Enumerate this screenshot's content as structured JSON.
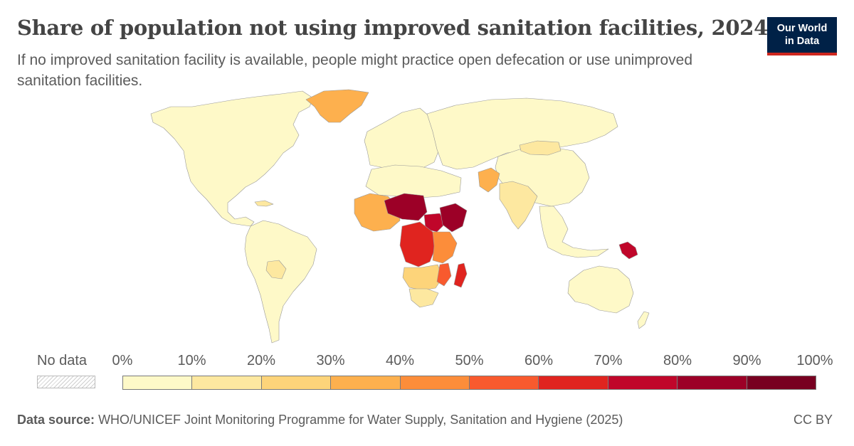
{
  "header": {
    "title": "Share of population not using improved sanitation facilities, 2024",
    "subtitle": "If no improved sanitation facility is available, people might practice open defecation or use unimproved sanitation facilities."
  },
  "logo": {
    "line1": "Our World",
    "line2": "in Data"
  },
  "legend": {
    "no_data_label": "No data",
    "ticks": [
      "0%",
      "10%",
      "20%",
      "30%",
      "40%",
      "50%",
      "60%",
      "70%",
      "80%",
      "90%",
      "100%"
    ],
    "bins": [
      {
        "range": "0-10%",
        "color": "#fef9c8"
      },
      {
        "range": "10-20%",
        "color": "#fde8a0"
      },
      {
        "range": "20-30%",
        "color": "#fdd47a"
      },
      {
        "range": "30-40%",
        "color": "#fdb04e"
      },
      {
        "range": "40-50%",
        "color": "#fc8d3a"
      },
      {
        "range": "50-60%",
        "color": "#f85a2e"
      },
      {
        "range": "60-70%",
        "color": "#e0241f"
      },
      {
        "range": "70-80%",
        "color": "#c0062a"
      },
      {
        "range": "80-90%",
        "color": "#9c0027"
      },
      {
        "range": "90-100%",
        "color": "#780021"
      }
    ]
  },
  "footer": {
    "source_label": "Data source:",
    "source_text": "WHO/UNICEF Joint Monitoring Programme for Water Supply, Sanitation and Hygiene (2025)",
    "license": "CC BY"
  },
  "map": {
    "regions": [
      {
        "name": "North America",
        "color": "#fef9c8"
      },
      {
        "name": "Greenland",
        "color": "#fdb04e"
      },
      {
        "name": "Caribbean",
        "color": "#fde8a0"
      },
      {
        "name": "South America",
        "color": "#fef9c8"
      },
      {
        "name": "Bolivia",
        "color": "#fde8a0"
      },
      {
        "name": "Europe",
        "color": "#fef9c8"
      },
      {
        "name": "Russia and Central Asia",
        "color": "#fef9c8"
      },
      {
        "name": "China",
        "color": "#fef9c8"
      },
      {
        "name": "Mongolia",
        "color": "#fde8a0"
      },
      {
        "name": "India",
        "color": "#fde8a0"
      },
      {
        "name": "Afghanistan",
        "color": "#fdb04e"
      },
      {
        "name": "Southeast Asia",
        "color": "#fef9c8"
      },
      {
        "name": "Papua New Guinea",
        "color": "#c0062a"
      },
      {
        "name": "Australia",
        "color": "#fef9c8"
      },
      {
        "name": "New Zealand",
        "color": "#fef9c8"
      },
      {
        "name": "North Africa",
        "color": "#fef9c8"
      },
      {
        "name": "West Africa",
        "color": "#fdb04e"
      },
      {
        "name": "Niger and Chad",
        "color": "#9c0027"
      },
      {
        "name": "South Sudan",
        "color": "#c0062a"
      },
      {
        "name": "Ethiopia",
        "color": "#9c0027"
      },
      {
        "name": "Central Africa",
        "color": "#e0241f"
      },
      {
        "name": "East Africa",
        "color": "#fc8d3a"
      },
      {
        "name": "Southern Africa",
        "color": "#fdd47a"
      },
      {
        "name": "South Africa",
        "color": "#fde8a0"
      },
      {
        "name": "Madagascar",
        "color": "#e0241f"
      },
      {
        "name": "Mozambique",
        "color": "#f85a2e"
      }
    ]
  }
}
